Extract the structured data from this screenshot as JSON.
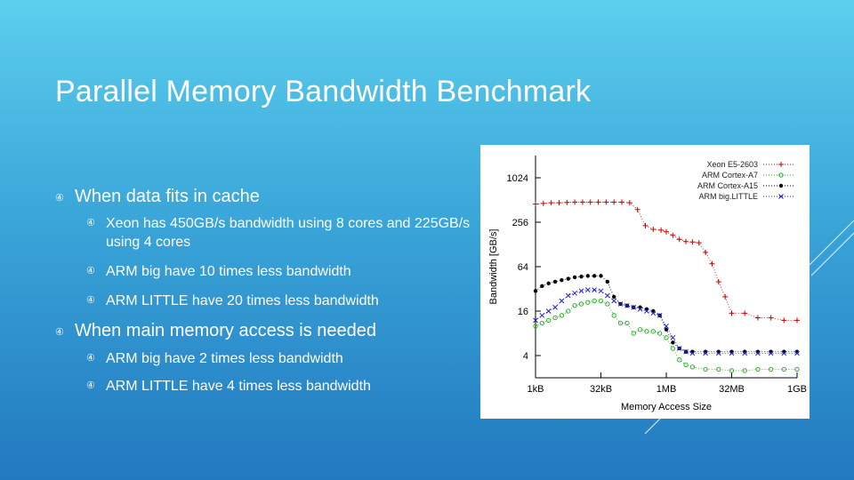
{
  "slide": {
    "title": "Parallel Memory Bandwidth Benchmark",
    "bullet_icon": "circled-arrow-icon",
    "bullets": [
      {
        "text": "When data fits in cache",
        "level": 1
      },
      {
        "text": "Xeon has 450GB/s bandwidth using 8 cores and 225GB/s using 4 cores",
        "level": 2
      },
      {
        "text": "ARM big have 10 times less bandwidth",
        "level": 2
      },
      {
        "text": "ARM LITTLE have 20 times less bandwidth",
        "level": 2
      },
      {
        "text": "When main memory access is needed",
        "level": 1
      },
      {
        "text": "ARM big have 2 times less bandwidth",
        "level": 2
      },
      {
        "text": "ARM LITTLE have 4 times less bandwidth",
        "level": 2
      }
    ],
    "colors": {
      "text": "#ffffff",
      "background_top": "#5ccfee",
      "background_bottom": "#2279bf"
    }
  },
  "chart_data": {
    "type": "line",
    "xlabel": "Memory Access Size",
    "ylabel": "Bandwidth [GB/s]",
    "x_scale": "log2",
    "y_scale": "log2",
    "xlim": [
      "1kB",
      "1GB"
    ],
    "ylim": [
      2,
      2048
    ],
    "x_ticks": [
      "1kB",
      "32kB",
      "1MB",
      "32MB",
      "1GB"
    ],
    "y_ticks": [
      "4",
      "16",
      "64",
      "256",
      "1024"
    ],
    "legend_position": "top-right",
    "grid": false,
    "series": [
      {
        "name": "Xeon E5-2603",
        "color": "#cc0000",
        "marker": "+",
        "x_log2_kB": [
          0,
          0.6,
          1.2,
          1.8,
          2.4,
          3,
          3.6,
          4.2,
          4.8,
          5.4,
          6,
          6.6,
          7.2,
          7.8,
          8.4,
          9,
          9.6,
          10,
          10.5,
          11,
          11.5,
          12,
          12.5,
          13,
          13.5,
          14,
          14.5,
          15,
          16,
          17,
          18,
          19,
          20
        ],
        "values": [
          450,
          460,
          470,
          470,
          475,
          480,
          480,
          480,
          480,
          480,
          480,
          480,
          470,
          380,
          230,
          205,
          200,
          190,
          170,
          150,
          140,
          138,
          135,
          100,
          70,
          40,
          25,
          15,
          15,
          13,
          13,
          12,
          12
        ]
      },
      {
        "name": "ARM Cortex-A7",
        "color": "#22aa22",
        "marker": "o",
        "x_log2_kB": [
          0,
          0.5,
          1,
          1.5,
          2,
          2.5,
          3,
          3.5,
          4,
          4.5,
          5,
          5.5,
          6,
          6.5,
          7,
          7.5,
          8,
          8.5,
          9,
          9.5,
          10,
          10.5,
          11,
          11.5,
          12,
          13,
          14,
          15,
          16,
          17,
          18,
          19,
          20
        ],
        "values": [
          10,
          11,
          12,
          13,
          14,
          16,
          19,
          20,
          21,
          22,
          22,
          20,
          14,
          11,
          11,
          8,
          9,
          8.5,
          8.5,
          8,
          7,
          5,
          3.5,
          3,
          2.8,
          2.6,
          2.6,
          2.5,
          2.5,
          2.6,
          2.6,
          2.6,
          2.6
        ]
      },
      {
        "name": "ARM Cortex-A15",
        "color": "#000000",
        "marker": "•",
        "x_log2_kB": [
          0,
          0.5,
          1,
          1.5,
          2,
          2.5,
          3,
          3.5,
          4,
          4.5,
          5,
          5.5,
          6,
          6.5,
          7,
          7.5,
          8,
          8.5,
          9,
          9.5,
          10,
          10.5,
          11,
          11.5,
          12,
          13,
          14,
          15,
          16,
          17,
          18,
          19,
          20
        ],
        "values": [
          30,
          35,
          38,
          40,
          42,
          44,
          46,
          47,
          48,
          48,
          48,
          40,
          25,
          20,
          19,
          18,
          18,
          17,
          16,
          14,
          9,
          6,
          5,
          4.5,
          4.5,
          4.5,
          4.5,
          4.5,
          4.5,
          4.5,
          4.5,
          4.5,
          4.5
        ]
      },
      {
        "name": "ARM big.LITTLE",
        "color": "#2222cc",
        "marker": "x",
        "x_log2_kB": [
          0,
          0.5,
          1,
          1.5,
          2,
          2.5,
          3,
          3.5,
          4,
          4.5,
          5,
          5.5,
          6,
          6.5,
          7,
          7.5,
          8,
          8.5,
          9,
          9.5,
          10,
          10.5,
          11,
          11.5,
          12,
          13,
          14,
          15,
          16,
          17,
          18,
          19,
          20
        ],
        "values": [
          12,
          14,
          16,
          18,
          22,
          26,
          28,
          30,
          31,
          31,
          30,
          26,
          22,
          20,
          19,
          18,
          17,
          16,
          15,
          14,
          10,
          7,
          5,
          4.5,
          4.3,
          4.3,
          4.3,
          4.3,
          4.3,
          4.3,
          4.3,
          4.3,
          4.3
        ]
      }
    ]
  }
}
